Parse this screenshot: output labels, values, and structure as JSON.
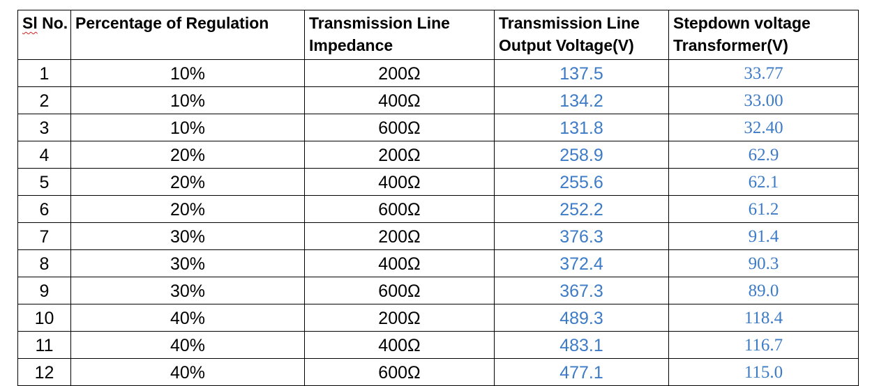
{
  "table": {
    "headers": {
      "sl_prefix": "Sl",
      "sl_suffix": " No.",
      "regulation": "Percentage of Regulation",
      "impedance": "Transmission Line\nImpedance",
      "output_voltage": "Transmission Line\nOutput Voltage(V)",
      "stepdown": "Stepdown voltage\nTransformer(V)"
    },
    "rows": [
      {
        "sl": "1",
        "regulation": "10%",
        "impedance": "200Ω",
        "output_voltage": "137.5",
        "stepdown": "33.77"
      },
      {
        "sl": "2",
        "regulation": "10%",
        "impedance": "400Ω",
        "output_voltage": "134.2",
        "stepdown": "33.00"
      },
      {
        "sl": "3",
        "regulation": "10%",
        "impedance": "600Ω",
        "output_voltage": "131.8",
        "stepdown": "32.40"
      },
      {
        "sl": "4",
        "regulation": "20%",
        "impedance": "200Ω",
        "output_voltage": "258.9",
        "stepdown": "62.9"
      },
      {
        "sl": "5",
        "regulation": "20%",
        "impedance": "400Ω",
        "output_voltage": "255.6",
        "stepdown": "62.1"
      },
      {
        "sl": "6",
        "regulation": "20%",
        "impedance": "600Ω",
        "output_voltage": "252.2",
        "stepdown": "61.2"
      },
      {
        "sl": "7",
        "regulation": "30%",
        "impedance": "200Ω",
        "output_voltage": "376.3",
        "stepdown": "91.4"
      },
      {
        "sl": "8",
        "regulation": "30%",
        "impedance": "400Ω",
        "output_voltage": "372.4",
        "stepdown": "90.3"
      },
      {
        "sl": "9",
        "regulation": "30%",
        "impedance": "600Ω",
        "output_voltage": "367.3",
        "stepdown": "89.0"
      },
      {
        "sl": "10",
        "regulation": "40%",
        "impedance": "200Ω",
        "output_voltage": "489.3",
        "stepdown": "118.4"
      },
      {
        "sl": "11",
        "regulation": "40%",
        "impedance": "400Ω",
        "output_voltage": "483.1",
        "stepdown": "116.7"
      },
      {
        "sl": "12",
        "regulation": "40%",
        "impedance": "600Ω",
        "output_voltage": "477.1",
        "stepdown": "115.0"
      }
    ]
  },
  "colors": {
    "value_blue": "#3d7bc6",
    "border": "#000000",
    "spellcheck_red": "#d21f1f"
  }
}
